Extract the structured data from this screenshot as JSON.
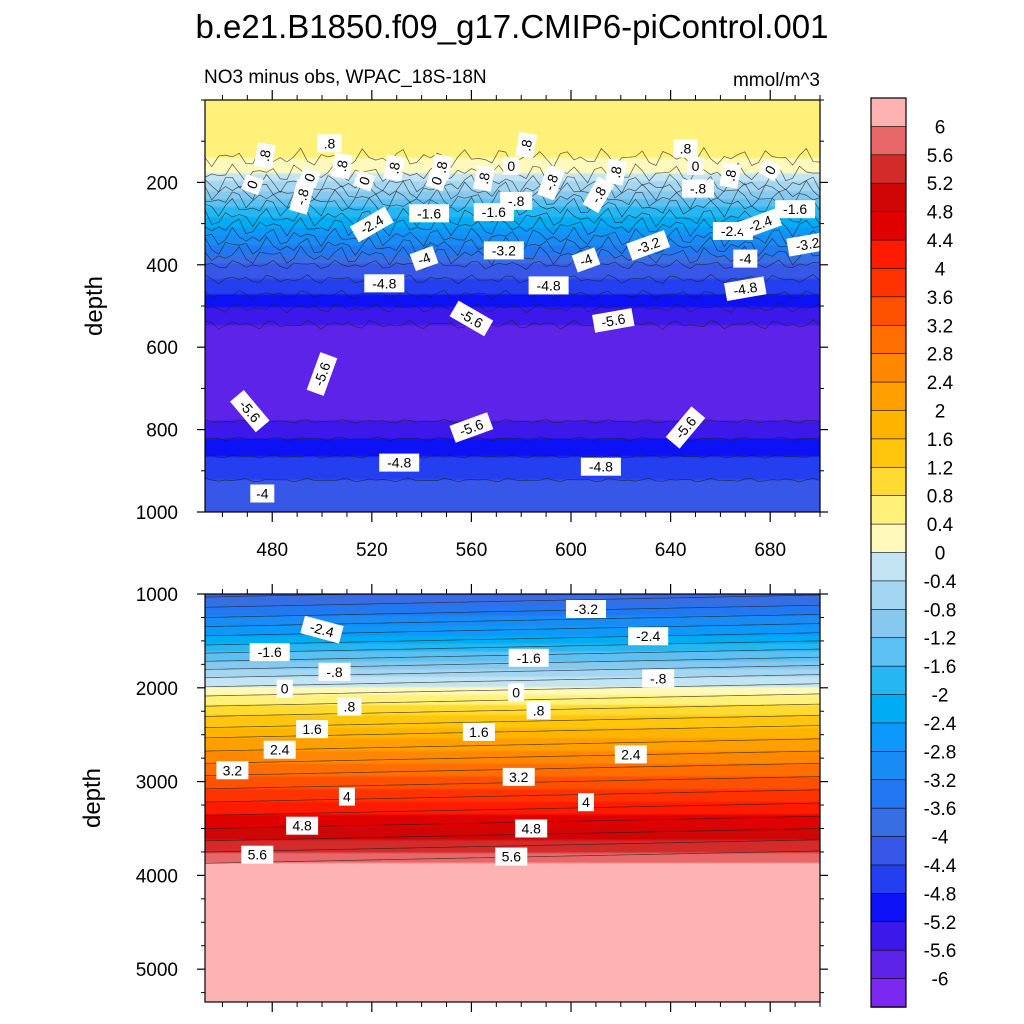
{
  "title": "b.e21.B1850.f09_g17.CMIP6-piControl.001",
  "subtitle_left": "NO3 minus obs, WPAC_18S-18N",
  "subtitle_right": "mmol/m^3",
  "chart_data": [
    {
      "type": "heatmap",
      "panel": "upper",
      "ylabel": "depth",
      "xlim": [
        453,
        700
      ],
      "ylim": [
        1000,
        0
      ],
      "xticks": [
        "480",
        "520",
        "560",
        "600",
        "640",
        "680"
      ],
      "xtick_values": [
        480,
        520,
        560,
        600,
        640,
        680
      ],
      "yticks": [
        "200",
        "400",
        "600",
        "800",
        "1000"
      ],
      "ytick_values": [
        200,
        400,
        600,
        800,
        1000
      ],
      "depth_profile": [
        {
          "depth": 0,
          "value": 0.8
        },
        {
          "depth": 100,
          "value": 0.6
        },
        {
          "depth": 160,
          "value": 0.3
        },
        {
          "depth": 200,
          "value": -0.4
        },
        {
          "depth": 260,
          "value": -1.6
        },
        {
          "depth": 330,
          "value": -2.8
        },
        {
          "depth": 400,
          "value": -4.0
        },
        {
          "depth": 470,
          "value": -4.8
        },
        {
          "depth": 520,
          "value": -5.4
        },
        {
          "depth": 580,
          "value": -5.9
        },
        {
          "depth": 720,
          "value": -5.9
        },
        {
          "depth": 780,
          "value": -5.6
        },
        {
          "depth": 850,
          "value": -4.9
        },
        {
          "depth": 920,
          "value": -4.4
        },
        {
          "depth": 1000,
          "value": -4.0
        }
      ],
      "contour_labels": [
        {
          "text": ".8",
          "x": 477,
          "depth": 135,
          "angle": -80
        },
        {
          "text": ".8",
          "x": 503,
          "depth": 105,
          "angle": 0
        },
        {
          "text": ".8",
          "x": 508,
          "depth": 160,
          "angle": -80
        },
        {
          "text": ".8",
          "x": 529,
          "depth": 165,
          "angle": -80
        },
        {
          "text": ".8",
          "x": 548,
          "depth": 163,
          "angle": -80
        },
        {
          "text": ".8",
          "x": 582,
          "depth": 110,
          "angle": -80
        },
        {
          "text": ".8",
          "x": 565,
          "depth": 190,
          "angle": -80
        },
        {
          "text": ".8",
          "x": 618,
          "depth": 175,
          "angle": -80
        },
        {
          "text": ".8",
          "x": 646,
          "depth": 118,
          "angle": 0
        },
        {
          "text": ".8",
          "x": 664,
          "depth": 183,
          "angle": -80
        },
        {
          "text": "0",
          "x": 472,
          "depth": 205,
          "angle": -70
        },
        {
          "text": "0",
          "x": 495,
          "depth": 188,
          "angle": -70
        },
        {
          "text": "0",
          "x": 517,
          "depth": 196,
          "angle": -70
        },
        {
          "text": "0",
          "x": 546,
          "depth": 196,
          "angle": -70
        },
        {
          "text": "0",
          "x": 576,
          "depth": 160,
          "angle": 0
        },
        {
          "text": "0",
          "x": 650,
          "depth": 160,
          "angle": 0
        },
        {
          "text": "0",
          "x": 680,
          "depth": 170,
          "angle": -60
        },
        {
          "text": "-.8",
          "x": 492,
          "depth": 235,
          "angle": -75
        },
        {
          "text": "-.8",
          "x": 592,
          "depth": 200,
          "angle": -70
        },
        {
          "text": "-.8",
          "x": 578,
          "depth": 245,
          "angle": 0
        },
        {
          "text": "-.8",
          "x": 611,
          "depth": 230,
          "angle": -60
        },
        {
          "text": "-.8",
          "x": 651,
          "depth": 215,
          "angle": 0
        },
        {
          "text": "-2.4",
          "x": 520,
          "depth": 302,
          "angle": -30
        },
        {
          "text": "-1.6",
          "x": 543,
          "depth": 275,
          "angle": 0
        },
        {
          "text": "-1.6",
          "x": 569,
          "depth": 272,
          "angle": 0
        },
        {
          "text": "-1.6",
          "x": 690,
          "depth": 265,
          "angle": 0
        },
        {
          "text": "-2.4",
          "x": 665,
          "depth": 318,
          "angle": 0
        },
        {
          "text": "-2.4",
          "x": 676,
          "depth": 300,
          "angle": -20
        },
        {
          "text": "-4",
          "x": 541,
          "depth": 385,
          "angle": -20
        },
        {
          "text": "-3.2",
          "x": 573,
          "depth": 365,
          "angle": 0
        },
        {
          "text": "-3.2",
          "x": 631,
          "depth": 353,
          "angle": -20
        },
        {
          "text": "-3.2",
          "x": 695,
          "depth": 350,
          "angle": -10
        },
        {
          "text": "-4",
          "x": 606,
          "depth": 388,
          "angle": -20
        },
        {
          "text": "-4",
          "x": 670,
          "depth": 385,
          "angle": 0
        },
        {
          "text": "-4.8",
          "x": 525,
          "depth": 445,
          "angle": 0
        },
        {
          "text": "-4.8",
          "x": 591,
          "depth": 450,
          "angle": 0
        },
        {
          "text": "-4.8",
          "x": 670,
          "depth": 458,
          "angle": -10
        },
        {
          "text": "-5.6",
          "x": 560,
          "depth": 530,
          "angle": 30
        },
        {
          "text": "-5.6",
          "x": 617,
          "depth": 535,
          "angle": -10
        },
        {
          "text": "-5.6",
          "x": 500,
          "depth": 665,
          "angle": -70
        },
        {
          "text": "-5.6",
          "x": 471,
          "depth": 755,
          "angle": 50
        },
        {
          "text": "-5.6",
          "x": 560,
          "depth": 795,
          "angle": -20
        },
        {
          "text": "-5.6",
          "x": 646,
          "depth": 795,
          "angle": -50
        },
        {
          "text": "-4.8",
          "x": 531,
          "depth": 880,
          "angle": 0
        },
        {
          "text": "-4.8",
          "x": 612,
          "depth": 890,
          "angle": 0
        },
        {
          "text": "-4",
          "x": 476,
          "depth": 955,
          "angle": 0
        }
      ]
    },
    {
      "type": "heatmap",
      "panel": "lower",
      "ylabel": "depth",
      "xlim": [
        453,
        700
      ],
      "ylim": [
        5350,
        1000
      ],
      "yticks": [
        "1000",
        "2000",
        "3000",
        "4000",
        "5000"
      ],
      "ytick_values": [
        1000,
        2000,
        3000,
        4000,
        5000
      ],
      "depth_profile": [
        {
          "depth": 1000,
          "value": -4.1
        },
        {
          "depth": 1400,
          "value": -2.6
        },
        {
          "depth": 1800,
          "value": -0.8
        },
        {
          "depth": 2050,
          "value": 0.3
        },
        {
          "depth": 2500,
          "value": 1.9
        },
        {
          "depth": 3000,
          "value": 3.4
        },
        {
          "depth": 3500,
          "value": 4.8
        },
        {
          "depth": 3750,
          "value": 5.6
        },
        {
          "depth": 3850,
          "value": 5.9
        },
        {
          "depth": 3900,
          "value": 6.2
        },
        {
          "depth": 5350,
          "value": 6.2
        }
      ],
      "contour_labels": [
        {
          "text": "-2.4",
          "x": 500,
          "depth": 1380,
          "angle": 15
        },
        {
          "text": "-3.2",
          "x": 606,
          "depth": 1160,
          "angle": 0
        },
        {
          "text": "-2.4",
          "x": 631,
          "depth": 1450,
          "angle": 0
        },
        {
          "text": "-1.6",
          "x": 479,
          "depth": 1620,
          "angle": 0
        },
        {
          "text": "-1.6",
          "x": 583,
          "depth": 1680,
          "angle": 0
        },
        {
          "text": "-.8",
          "x": 505,
          "depth": 1830,
          "angle": 0
        },
        {
          "text": "-.8",
          "x": 635,
          "depth": 1900,
          "angle": 0
        },
        {
          "text": "0",
          "x": 485,
          "depth": 2010,
          "angle": 0
        },
        {
          "text": "0",
          "x": 578,
          "depth": 2050,
          "angle": 0
        },
        {
          "text": ".8",
          "x": 511,
          "depth": 2200,
          "angle": 0
        },
        {
          "text": ".8",
          "x": 587,
          "depth": 2240,
          "angle": 0
        },
        {
          "text": "1.6",
          "x": 496,
          "depth": 2440,
          "angle": 0
        },
        {
          "text": "1.6",
          "x": 563,
          "depth": 2470,
          "angle": 0
        },
        {
          "text": "2.4",
          "x": 483,
          "depth": 2660,
          "angle": 0
        },
        {
          "text": "2.4",
          "x": 624,
          "depth": 2710,
          "angle": 0
        },
        {
          "text": "3.2",
          "x": 464,
          "depth": 2880,
          "angle": 0
        },
        {
          "text": "3.2",
          "x": 579,
          "depth": 2950,
          "angle": 0
        },
        {
          "text": "4",
          "x": 510,
          "depth": 3160,
          "angle": 0
        },
        {
          "text": "4",
          "x": 606,
          "depth": 3220,
          "angle": 0
        },
        {
          "text": "4.8",
          "x": 492,
          "depth": 3470,
          "angle": 0
        },
        {
          "text": "4.8",
          "x": 584,
          "depth": 3500,
          "angle": 0
        },
        {
          "text": "5.6",
          "x": 474,
          "depth": 3780,
          "angle": 0
        },
        {
          "text": "5.6",
          "x": 576,
          "depth": 3800,
          "angle": 0
        }
      ]
    }
  ],
  "colorbar": {
    "labels": [
      "6",
      "5.6",
      "5.2",
      "4.8",
      "4.4",
      "4",
      "3.6",
      "3.2",
      "2.8",
      "2.4",
      "2",
      "1.6",
      "1.2",
      "0.8",
      "0.4",
      "0",
      "-0.4",
      "-0.8",
      "-1.2",
      "-1.6",
      "-2",
      "-2.4",
      "-2.8",
      "-3.2",
      "-3.6",
      "-4",
      "-4.4",
      "-4.8",
      "-5.2",
      "-5.6",
      "-6"
    ],
    "colors": [
      "#feb3b3",
      "#e8686a",
      "#d32a2a",
      "#d00505",
      "#e10000",
      "#fe1b00",
      "#ff3300",
      "#fe5100",
      "#ff6e00",
      "#ff8800",
      "#ffa000",
      "#ffb500",
      "#ffc60d",
      "#ffdb31",
      "#fff17a",
      "#fff9bc",
      "#c3e5f3",
      "#a3d6f1",
      "#86c8ee",
      "#5dc0f2",
      "#25b7f2",
      "#00adf4",
      "#0d98fb",
      "#188bf5",
      "#2178f2",
      "#386ee4",
      "#3657e8",
      "#243ff0",
      "#0c12f5",
      "#3c19ea",
      "#5e23e8",
      "#7b29f0"
    ]
  }
}
